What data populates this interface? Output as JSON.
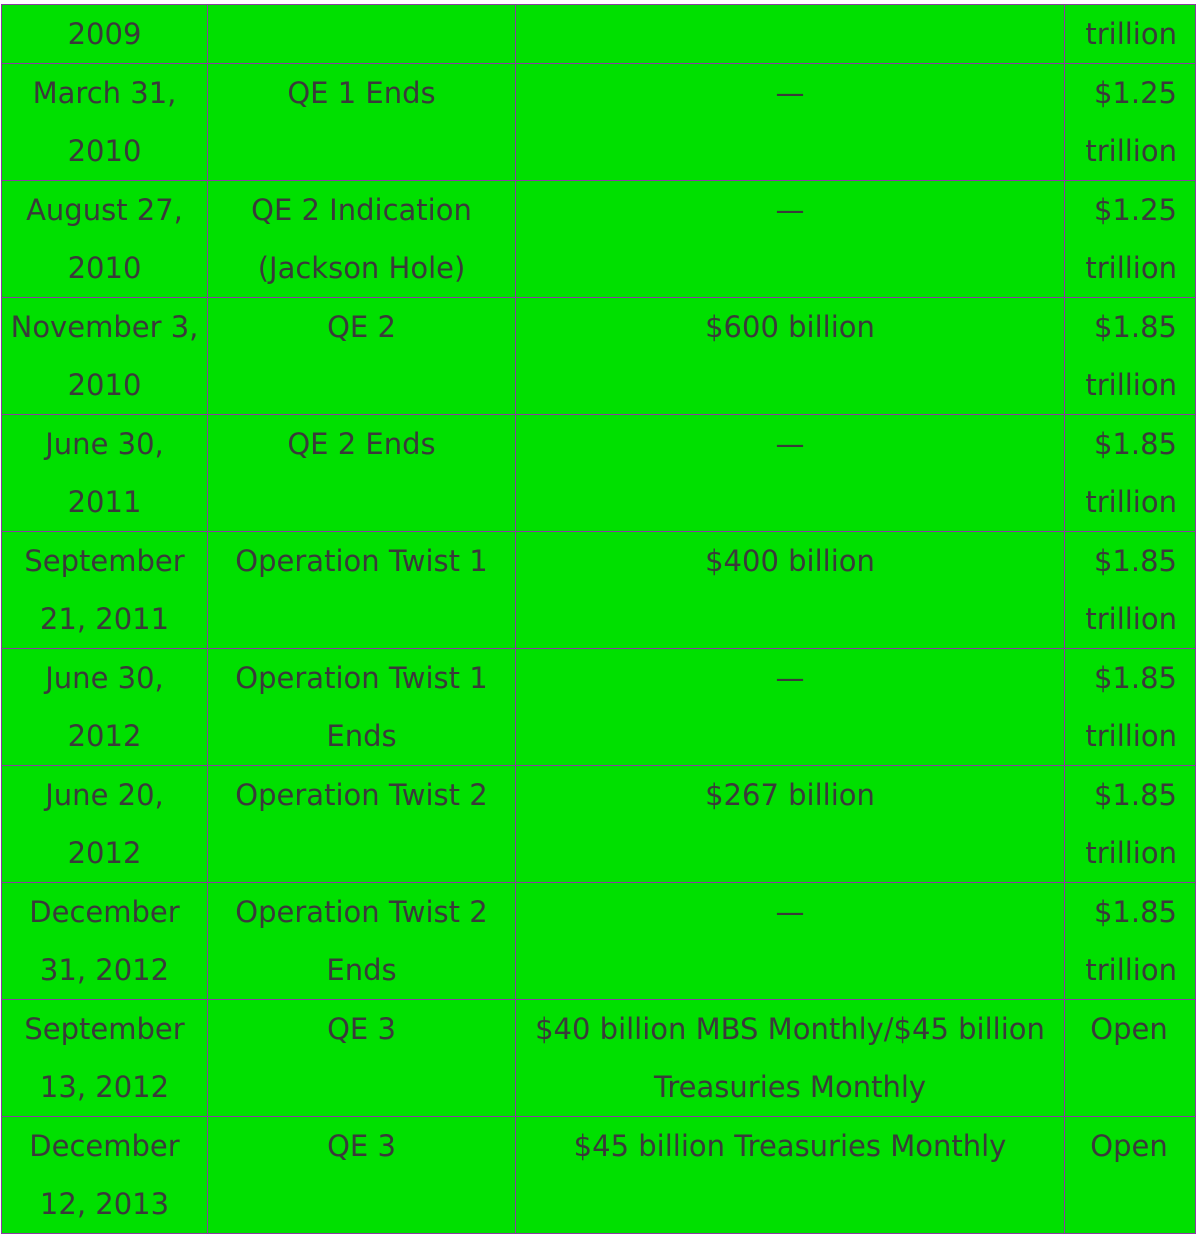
{
  "table": {
    "top_fragment": {
      "date": "2009",
      "event": "",
      "amount": "",
      "total": "trillion"
    },
    "rows": [
      {
        "date": "March 31, 2010",
        "event": "QE 1 Ends",
        "amount": "—",
        "total": "$1.25 trillion"
      },
      {
        "date": "August 27, 2010",
        "event": "QE 2 Indication (Jackson Hole)",
        "amount": "—",
        "total": "$1.25 trillion"
      },
      {
        "date": "November 3, 2010",
        "event": "QE 2",
        "amount": "$600 billion",
        "total": "$1.85 trillion"
      },
      {
        "date": "June 30, 2011",
        "event": "QE 2 Ends",
        "amount": "—",
        "total": "$1.85 trillion"
      },
      {
        "date": "September 21, 2011",
        "event": "Operation Twist 1",
        "amount": "$400 billion",
        "total": "$1.85 trillion"
      },
      {
        "date": "June 30, 2012",
        "event": "Operation Twist 1 Ends",
        "amount": "—",
        "total": "$1.85 trillion"
      },
      {
        "date": "June 20, 2012",
        "event": "Operation Twist 2",
        "amount": "$267 billion",
        "total": "$1.85 trillion"
      },
      {
        "date": "December 31, 2012",
        "event": "Operation Twist 2 Ends",
        "amount": "—",
        "total": "$1.85 trillion"
      },
      {
        "date": "September 13, 2012",
        "event": "QE 3",
        "amount": "$40 billion MBS Monthly/$45 billion Treasuries Monthly",
        "total": "Open"
      },
      {
        "date": "December 12, 2013",
        "event": "QE 3",
        "amount": "$45 billion Treasuries Monthly",
        "total": "Open"
      }
    ]
  },
  "colors": {
    "cell_background": "#00e000",
    "border": "#8a3ca0",
    "text": "#3a3a3a"
  }
}
